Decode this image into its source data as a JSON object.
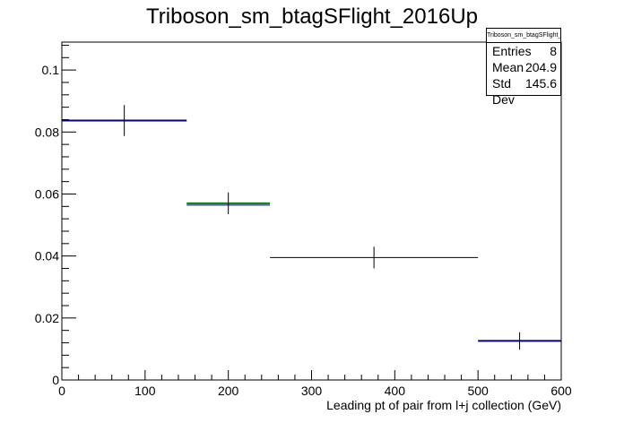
{
  "chart_data": {
    "type": "histogram",
    "title": "Triboson_sm_btagSFlight_2016Up",
    "xlabel": "Leading pt of pair from l+j collection (GeV)",
    "ylabel": "",
    "xlim": [
      0,
      600
    ],
    "ylim": [
      0,
      0.109
    ],
    "x_ticks": [
      0,
      100,
      200,
      300,
      400,
      500,
      600
    ],
    "y_ticks": [
      0,
      0.02,
      0.04,
      0.06,
      0.08,
      0.1
    ],
    "y_tick_labels": [
      "0",
      "0.02",
      "0.04",
      "0.06",
      "0.08",
      "0.1"
    ],
    "grid": false,
    "series": [
      {
        "bins": [
          {
            "x_low": 0,
            "x_high": 150,
            "x_center": 75,
            "value": 0.0837,
            "err": 0.005,
            "color": "#000080"
          },
          {
            "x_low": 150,
            "x_high": 250,
            "x_center": 200,
            "value": 0.057,
            "err": 0.0035,
            "color": "#008000"
          },
          {
            "x_low": 250,
            "x_high": 500,
            "x_center": 375,
            "value": 0.0395,
            "err": 0.0035,
            "color": "#000000"
          },
          {
            "x_low": 500,
            "x_high": 600,
            "x_center": 550,
            "value": 0.0126,
            "err": 0.0028,
            "color": "#000080"
          }
        ]
      }
    ]
  },
  "stats": {
    "title": "Triboson_sm_btagSFlight_2016Up",
    "rows": [
      {
        "label": "Entries",
        "value": "8"
      },
      {
        "label": "Mean",
        "value": "204.9"
      },
      {
        "label": "Std Dev",
        "value": "145.6"
      }
    ]
  }
}
